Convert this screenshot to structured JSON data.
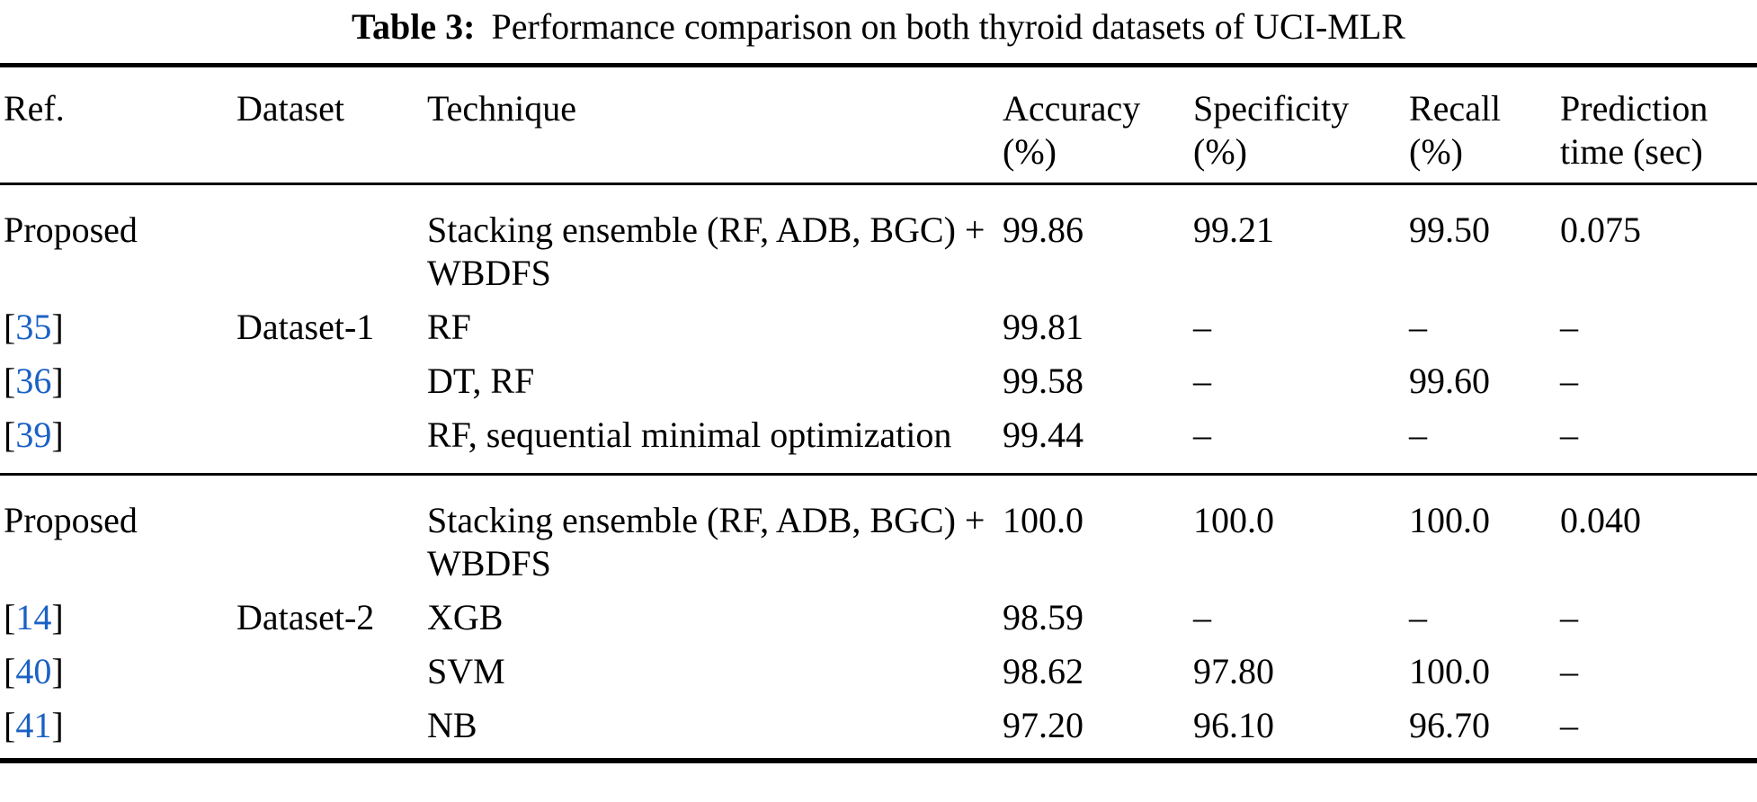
{
  "caption": {
    "label": "Table 3:",
    "text": "Performance comparison on both thyroid datasets of UCI-MLR"
  },
  "colors": {
    "text": "#000000",
    "citation_blue": "#1a61c4",
    "rule": "#000000",
    "background": "#ffffff"
  },
  "citation_brackets": {
    "open": "[",
    "close": "]"
  },
  "table": {
    "columns": [
      {
        "key": "ref",
        "label": "Ref."
      },
      {
        "key": "dataset",
        "label": "Dataset"
      },
      {
        "key": "technique",
        "label": "Technique"
      },
      {
        "key": "accuracy",
        "label": "Accuracy\n(%)"
      },
      {
        "key": "specificity",
        "label": "Specificity\n(%)"
      },
      {
        "key": "recall",
        "label": "Recall\n(%)"
      },
      {
        "key": "prediction_time",
        "label": "Prediction\ntime (sec)"
      }
    ],
    "missing_marker": "–",
    "groups": [
      {
        "rows": [
          {
            "ref_text": "Proposed",
            "dataset": "",
            "technique": "Stacking ensemble (RF, ADB, BGC) + WBDFS",
            "accuracy": "99.86",
            "specificity": "99.21",
            "recall": "99.50",
            "prediction_time": "0.075"
          },
          {
            "ref_citation": "35",
            "dataset": "Dataset-1",
            "technique": "RF",
            "accuracy": "99.81",
            "specificity": "–",
            "recall": "–",
            "prediction_time": "–"
          },
          {
            "ref_citation": "36",
            "dataset": "",
            "technique": "DT, RF",
            "accuracy": "99.58",
            "specificity": "–",
            "recall": "99.60",
            "prediction_time": "–"
          },
          {
            "ref_citation": "39",
            "dataset": "",
            "technique": "RF, sequential minimal optimization",
            "accuracy": "99.44",
            "specificity": "–",
            "recall": "–",
            "prediction_time": "–"
          }
        ]
      },
      {
        "rows": [
          {
            "ref_text": "Proposed",
            "dataset": "",
            "technique": "Stacking ensemble (RF, ADB, BGC) + WBDFS",
            "accuracy": "100.0",
            "specificity": "100.0",
            "recall": "100.0",
            "prediction_time": "0.040"
          },
          {
            "ref_citation": "14",
            "dataset": "Dataset-2",
            "technique": "XGB",
            "accuracy": "98.59",
            "specificity": "–",
            "recall": "–",
            "prediction_time": "–"
          },
          {
            "ref_citation": "40",
            "dataset": "",
            "technique": "SVM",
            "accuracy": "98.62",
            "specificity": "97.80",
            "recall": "100.0",
            "prediction_time": "–"
          },
          {
            "ref_citation": "41",
            "dataset": "",
            "technique": "NB",
            "accuracy": "97.20",
            "specificity": "96.10",
            "recall": "96.70",
            "prediction_time": "–"
          }
        ]
      }
    ]
  }
}
